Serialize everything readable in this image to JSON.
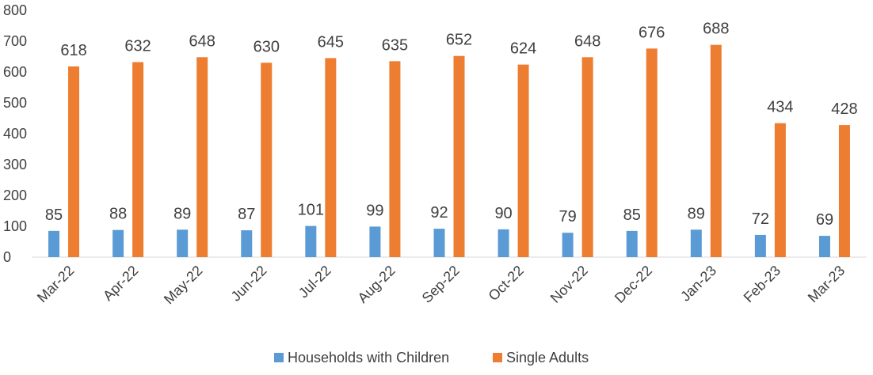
{
  "chart_data": {
    "type": "bar",
    "categories": [
      "Mar-22",
      "Apr-22",
      "May-22",
      "Jun-22",
      "Jul-22",
      "Aug-22",
      "Sep-22",
      "Oct-22",
      "Nov-22",
      "Dec-22",
      "Jan-23",
      "Feb-23",
      "Mar-23"
    ],
    "series": [
      {
        "name": "Households with Children",
        "color": "#5B9BD5",
        "values": [
          85,
          88,
          89,
          87,
          101,
          99,
          92,
          90,
          79,
          85,
          89,
          72,
          69
        ]
      },
      {
        "name": "Single Adults",
        "color": "#ED7D31",
        "values": [
          618,
          632,
          648,
          630,
          645,
          635,
          652,
          624,
          648,
          676,
          688,
          434,
          428
        ]
      }
    ],
    "ylim": [
      0,
      800
    ],
    "yticks": [
      "0",
      "100",
      "200",
      "300",
      "400",
      "500",
      "600",
      "700",
      "800"
    ],
    "grid": false,
    "legend_position": "bottom",
    "title": "",
    "xlabel": "",
    "ylabel": ""
  }
}
